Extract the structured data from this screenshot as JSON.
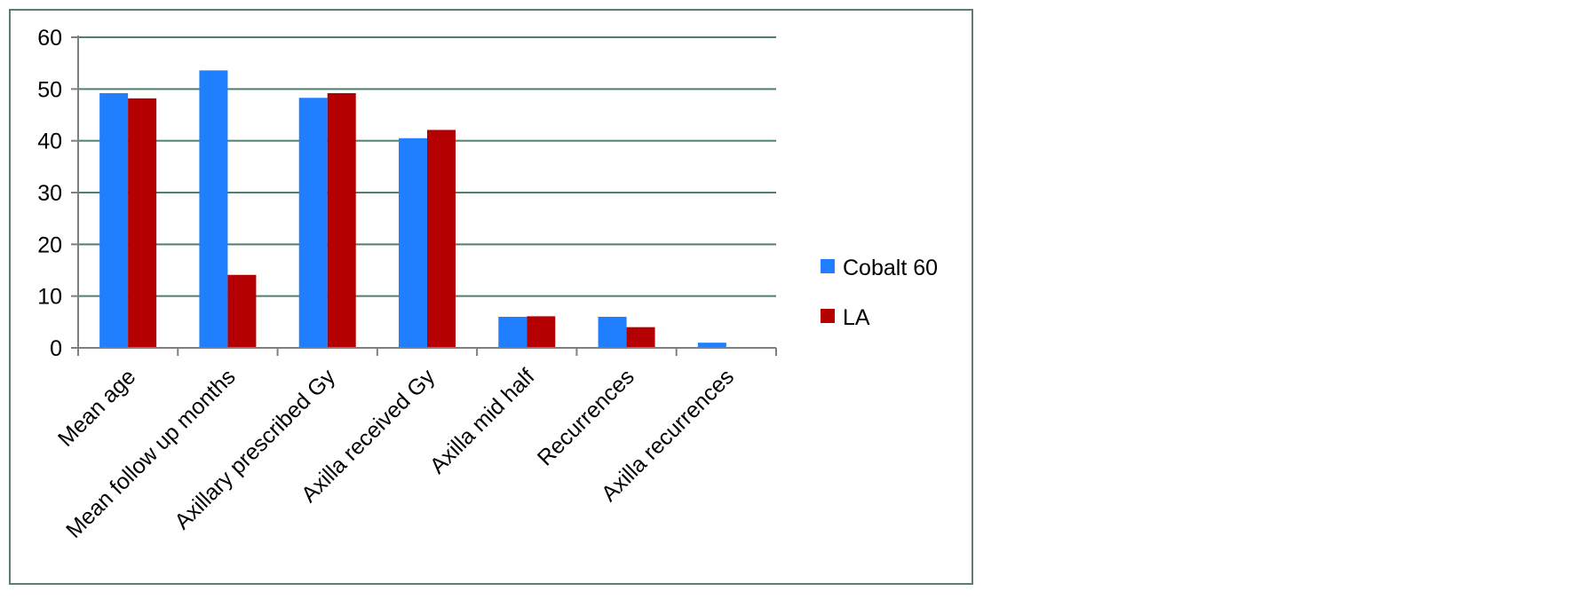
{
  "chart_data": {
    "type": "bar",
    "title": "",
    "xlabel": "",
    "ylabel": "",
    "categories": [
      "Mean age",
      "Mean follow up months",
      "Axillary  prescribed Gy",
      "Axilla received  Gy",
      "Axilla mid half",
      "Recurrences",
      "Axilla recurrences"
    ],
    "series": [
      {
        "name": "Cobalt 60",
        "color": "#1f7fff",
        "values": [
          49.2,
          53.6,
          48.3,
          40.5,
          6.0,
          6.0,
          1.0
        ]
      },
      {
        "name": "LA",
        "color": "#b40000",
        "values": [
          48.2,
          14.1,
          49.2,
          42.1,
          6.1,
          4.0,
          0
        ]
      }
    ],
    "ylim": [
      0,
      60
    ],
    "yticks": [
      "0",
      "10",
      "20",
      "30",
      "40",
      "50",
      "60"
    ],
    "grid": true,
    "legend_position": "right"
  }
}
